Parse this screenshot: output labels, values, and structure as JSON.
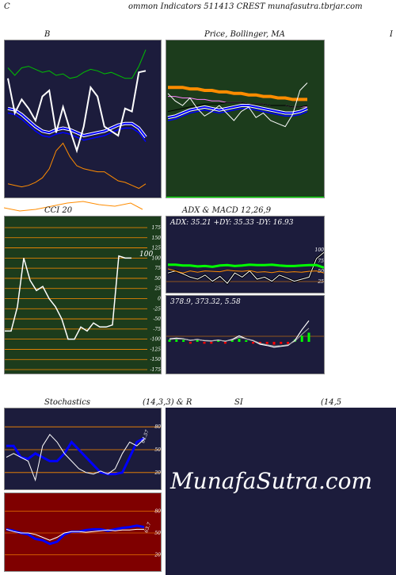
{
  "header": {
    "title": "ommon  Indicators 511413 CREST munafasutra.tbrjar.com",
    "left_letter": "C"
  },
  "titles": {
    "bollinger": "B",
    "price_ma": "Price,  Bollinger,  MA",
    "price_ma_edge": "I",
    "cci": "CCI 20",
    "adx_macd": "ADX  & MACD 12,26,9",
    "stoch": "Stochastics",
    "stoch_params": "(14,3,3) & R",
    "rsi": "SI",
    "rsi_params": "(14,5"
  },
  "watermark": "MunafaSutra.com",
  "colors": {
    "panel_dark": "#1c1c3c",
    "panel_green": "#1c3c1c",
    "panel_red": "#7f0000",
    "orange": "#ff8c00",
    "blue": "#0000ff",
    "green": "#00c000",
    "bright_green": "#00ff00",
    "white": "#ffffff"
  },
  "chart_data": [
    {
      "type": "line",
      "id": "bollinger",
      "ylim": [
        0,
        100
      ],
      "series": [
        {
          "values": [
            85,
            80,
            85,
            86,
            84,
            82,
            83,
            80,
            81,
            78,
            79,
            82,
            84,
            83,
            81,
            82,
            80,
            78,
            78,
            86,
            97
          ]
        },
        {
          "values": [
            42,
            43,
            46,
            50,
            54,
            57,
            58,
            56,
            55,
            56,
            58,
            60,
            59,
            58,
            57,
            55,
            53,
            52,
            52,
            55,
            61
          ]
        },
        {
          "values": [
            45,
            46,
            49,
            53,
            57,
            60,
            61,
            59,
            58,
            59,
            61,
            63,
            62,
            61,
            60,
            58,
            56,
            55,
            55,
            58,
            64
          ]
        },
        {
          "values": [
            8,
            7,
            6,
            7,
            9,
            12,
            18,
            30,
            35,
            26,
            20,
            18,
            17,
            16,
            16,
            13,
            10,
            9,
            7,
            5,
            8
          ]
        },
        {
          "values": [
            78,
            55,
            64,
            58,
            50,
            66,
            70,
            42,
            59,
            44,
            30,
            46,
            72,
            66,
            46,
            43,
            40,
            58,
            56,
            82,
            83
          ]
        }
      ]
    },
    {
      "type": "line",
      "id": "price_ma",
      "ylim": [
        0,
        100
      ],
      "series": [
        {
          "values": [
            72,
            72,
            72,
            71,
            71,
            70,
            70,
            69,
            69,
            68,
            68,
            67,
            67,
            66,
            66,
            65,
            65,
            64,
            64,
            64
          ]
        },
        {
          "values": [
            66,
            66,
            65,
            65,
            64,
            64,
            63,
            63,
            62,
            62,
            62,
            61,
            61,
            61,
            60,
            60,
            60,
            59,
            59,
            59
          ]
        },
        {
          "values": [
            56,
            57,
            58,
            59,
            60,
            61,
            61,
            61,
            62,
            62,
            62,
            61,
            61,
            61,
            60,
            60,
            60,
            59,
            59,
            60
          ]
        },
        {
          "values": [
            52,
            53,
            55,
            57,
            58,
            59,
            58,
            57,
            58,
            59,
            60,
            60,
            59,
            58,
            57,
            56,
            55,
            55,
            56,
            58
          ]
        },
        {
          "values": [
            50,
            51,
            53,
            55,
            56,
            57,
            56,
            55,
            56,
            57,
            58,
            58,
            57,
            56,
            55,
            54,
            53,
            53,
            54,
            56
          ]
        },
        {
          "values": [
            68,
            63,
            60,
            65,
            58,
            53,
            56,
            60,
            55,
            50,
            56,
            59,
            52,
            55,
            50,
            48,
            46,
            54,
            70,
            75
          ]
        }
      ]
    },
    {
      "type": "line",
      "id": "cci",
      "ylim": [
        -175,
        175
      ],
      "tick_labels": [
        "175",
        "150",
        "125",
        "100",
        "75",
        "50",
        "25",
        "0",
        "-25",
        "-50",
        "-75",
        "-100",
        "-125",
        "-150",
        "-175"
      ],
      "readout": "100",
      "series": [
        {
          "values": [
            -80,
            -80,
            -20,
            100,
            45,
            20,
            30,
            0,
            -20,
            -50,
            -100,
            -100,
            -70,
            -80,
            -60,
            -70,
            -70,
            -65,
            105,
            100,
            100
          ]
        }
      ]
    },
    {
      "type": "line",
      "id": "adx",
      "ylim": [
        0,
        100
      ],
      "tick_labels": [
        "100",
        "75",
        "50",
        "25"
      ],
      "readout": "ADX: 35.21  +DY: 35.33  -DY: 16.93",
      "series": [
        {
          "values": [
            35,
            35,
            33,
            33,
            31,
            32,
            30,
            33,
            34,
            32,
            33,
            35,
            34,
            34,
            35,
            33,
            32,
            32,
            33,
            34,
            34,
            28
          ]
        },
        {
          "values": [
            50,
            45,
            40,
            45,
            42,
            45,
            44,
            43,
            47,
            45,
            44,
            46,
            42,
            43,
            41,
            44,
            42,
            43,
            42,
            44,
            45,
            40
          ]
        },
        {
          "values": [
            40,
            45,
            38,
            30,
            25,
            35,
            20,
            32,
            15,
            40,
            30,
            45,
            25,
            30,
            20,
            35,
            28,
            20,
            25,
            30,
            75,
            90
          ]
        }
      ]
    },
    {
      "type": "line",
      "id": "macd",
      "ylim": [
        -10,
        10
      ],
      "readout": "378.9,  373.32,  5.58",
      "series": [
        {
          "values": [
            1,
            1.2,
            1,
            0.5,
            0.8,
            0.4,
            0.3,
            0.6,
            0.2,
            0.8,
            2,
            1,
            0.4,
            -0.8,
            -1.2,
            -1.8,
            -1.5,
            -1.2,
            0.5,
            4,
            7
          ]
        },
        {
          "values": [
            0.8,
            1,
            0.9,
            0.6,
            0.7,
            0.5,
            0.4,
            0.5,
            0.3,
            0.6,
            1.5,
            1,
            0.5,
            -0.5,
            -1,
            -1.4,
            -1.3,
            -1,
            0.2,
            2.5,
            4.5
          ]
        }
      ]
    },
    {
      "type": "line",
      "id": "stoch",
      "ylim": [
        0,
        100
      ],
      "tick_labels": [
        "80",
        "50",
        "20"
      ],
      "readout": "64.57",
      "series": [
        {
          "values": [
            55,
            55,
            40,
            38,
            45,
            40,
            35,
            35,
            45,
            60,
            50,
            40,
            30,
            20,
            18,
            18,
            20,
            40,
            60,
            65
          ]
        },
        {
          "values": [
            40,
            45,
            40,
            35,
            10,
            55,
            70,
            60,
            45,
            35,
            25,
            20,
            18,
            22,
            18,
            25,
            45,
            60,
            55,
            64
          ]
        }
      ]
    },
    {
      "type": "line",
      "id": "rsi",
      "ylim": [
        0,
        100
      ],
      "tick_labels": [
        "80",
        "50",
        "20"
      ],
      "readout": "63.7",
      "series": [
        {
          "values": [
            55,
            53,
            50,
            48,
            42,
            40,
            35,
            38,
            48,
            52,
            52,
            54,
            55,
            55,
            53,
            55,
            57,
            58,
            60,
            58
          ]
        },
        {
          "values": [
            55,
            52,
            50,
            50,
            48,
            44,
            40,
            44,
            50,
            52,
            52,
            51,
            52,
            53,
            54,
            53,
            54,
            54,
            55,
            55
          ]
        }
      ]
    }
  ]
}
